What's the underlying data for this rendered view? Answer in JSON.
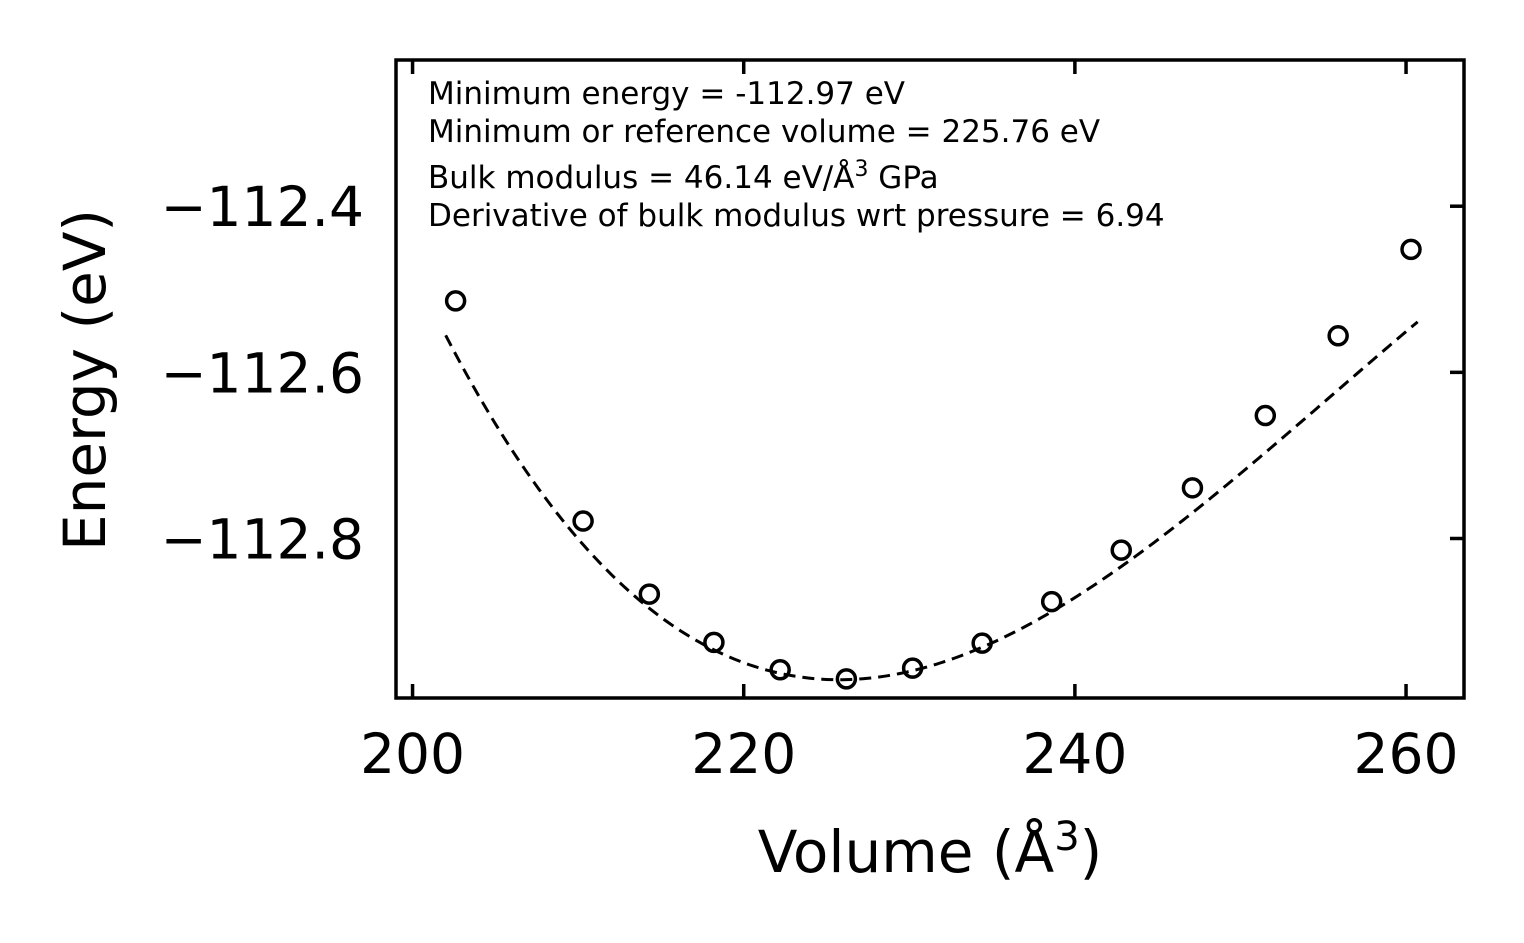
{
  "chart_data": {
    "type": "scatter",
    "title": "",
    "xlabel": "Volume (Å",
    "xlabel_sup": "3",
    "xlabel_close": ")",
    "ylabel": "Energy (eV)",
    "xlim": [
      199,
      263.5
    ],
    "ylim": [
      -112.992,
      -112.224
    ],
    "xticks": [
      200,
      220,
      240,
      260
    ],
    "xtick_labels": [
      "200",
      "220",
      "240",
      "260"
    ],
    "yticks": [
      -112.4,
      -112.6,
      -112.8
    ],
    "ytick_labels": [
      "−112.4",
      "−112.6",
      "−112.8"
    ],
    "series": [
      {
        "name": "data",
        "marker": "open-circle",
        "x": [
          202.6,
          210.3,
          214.3,
          218.2,
          222.2,
          226.2,
          230.2,
          234.4,
          238.6,
          242.8,
          247.1,
          251.5,
          255.9,
          260.3
        ],
        "y": [
          -112.514,
          -112.779,
          -112.867,
          -112.925,
          -112.958,
          -112.969,
          -112.956,
          -112.926,
          -112.876,
          -112.814,
          -112.739,
          -112.652,
          -112.556,
          -112.452
        ]
      }
    ],
    "fit": {
      "name": "fit",
      "style": "dashed",
      "e0": -112.97,
      "v0": 225.76,
      "coef_quad": 0.00058,
      "coef_cub": -6.5e-06,
      "x_range": [
        202.0,
        260.7
      ]
    },
    "annotations": [
      "Minimum energy = -112.97 eV",
      "Minimum or reference volume = 225.76 eV",
      "Bulk modulus = 46.14 eV/Å",
      "3",
      " GPa",
      "Derivative of bulk modulus wrt pressure = 6.94"
    ],
    "colors": {
      "line": "#000000",
      "background": "#ffffff"
    }
  }
}
